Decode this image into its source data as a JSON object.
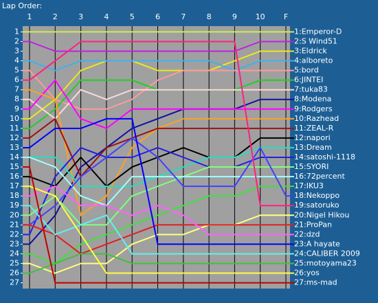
{
  "chart_data": {
    "type": "line",
    "title": "Lap Order:",
    "categories": [
      null,
      "1",
      "2",
      "3",
      "4",
      "5",
      "6",
      "7",
      "8",
      "9",
      "10",
      "F"
    ],
    "ylim": [
      27.6,
      0.4
    ],
    "yticks": [
      1,
      2,
      3,
      4,
      5,
      6,
      7,
      8,
      9,
      10,
      11,
      12,
      13,
      14,
      15,
      16,
      17,
      18,
      19,
      20,
      21,
      22,
      23,
      24,
      25,
      26,
      27
    ],
    "series": [
      {
        "name": "1:Emperor-D",
        "color": "#c8f050",
        "values": [
          1,
          1,
          1,
          1,
          1,
          1,
          1,
          1,
          1,
          1,
          1,
          1
        ]
      },
      {
        "name": "2:S Wind51",
        "color": "#c020e0",
        "values": [
          2,
          2,
          3,
          3,
          3,
          3,
          3,
          3,
          3,
          3,
          2,
          2
        ]
      },
      {
        "name": "3:Eldrick",
        "color": "#e8e820",
        "values": [
          10,
          10,
          8,
          5,
          4,
          4,
          5,
          5,
          5,
          4,
          3,
          3
        ]
      },
      {
        "name": "4:alboreto",
        "color": "#40b0f0",
        "values": [
          4,
          4,
          5,
          4,
          4,
          4,
          4,
          4,
          4,
          5,
          4,
          4
        ]
      },
      {
        "name": "5:bord",
        "color": "#ff9999",
        "values": [
          5,
          5,
          8,
          9,
          9,
          8,
          6,
          5,
          5,
          5,
          5,
          5
        ]
      },
      {
        "name": "6:JINTEI",
        "color": "#20d020",
        "values": [
          11,
          11,
          9,
          6,
          6,
          6,
          7,
          7,
          7,
          7,
          6,
          6
        ]
      },
      {
        "name": "7:tuka83",
        "color": "#ffd8d8",
        "values": [
          8,
          8,
          10,
          7,
          8,
          7,
          7,
          7,
          7,
          7,
          7,
          7
        ]
      },
      {
        "name": "8:Modena",
        "color": "#1010a0",
        "values": [
          23,
          23,
          20,
          15,
          13,
          11,
          10,
          9,
          9,
          9,
          8,
          8
        ]
      },
      {
        "name": "9:Rodgers",
        "color": "#ff00ff",
        "values": [
          9,
          9,
          6,
          10,
          11,
          9,
          9,
          9,
          9,
          9,
          9,
          9
        ]
      },
      {
        "name": "10:Razhead",
        "color": "#ffa020",
        "values": [
          7,
          7,
          8,
          20,
          18,
          13,
          11,
          10,
          10,
          10,
          10,
          10
        ]
      },
      {
        "name": "11:ZEAL-R",
        "color": "#a01010",
        "values": [
          12,
          12,
          10,
          16,
          13,
          12,
          11,
          11,
          11,
          11,
          11,
          11
        ]
      },
      {
        "name": "12:napori",
        "color": "#000000",
        "values": [
          16,
          16,
          17,
          14,
          17,
          15,
          14,
          13,
          14,
          14,
          12,
          12
        ]
      },
      {
        "name": "13:Dream",
        "color": "#20e0c0",
        "values": [
          14,
          14,
          14,
          17,
          17,
          17,
          16,
          15,
          14,
          14,
          13,
          13
        ]
      },
      {
        "name": "14:satoshi-1118",
        "color": "#2020e0",
        "values": [
          22,
          22,
          16,
          13,
          14,
          14,
          13,
          14,
          15,
          15,
          14,
          14
        ]
      },
      {
        "name": "15:SYORI",
        "color": "#80ff80",
        "values": [
          20,
          20,
          18,
          21,
          21,
          18,
          17,
          16,
          15,
          15,
          15,
          15
        ]
      },
      {
        "name": "16:72percent",
        "color": "#a0ffff",
        "values": [
          14,
          14,
          15,
          18,
          19,
          16,
          16,
          16,
          16,
          16,
          16,
          16
        ]
      },
      {
        "name": "17:IKU3",
        "color": "#40e040",
        "values": [
          24,
          24,
          25,
          23,
          22,
          21,
          20,
          19,
          18,
          18,
          17,
          17
        ]
      },
      {
        "name": "18:Nekoppo",
        "color": "#4040ff",
        "values": [
          21,
          21,
          19,
          16,
          14,
          12,
          14,
          17,
          17,
          17,
          13,
          18
        ]
      },
      {
        "name": "19:satoruko",
        "color": "#ff2080",
        "values": [
          6,
          6,
          4,
          2,
          2,
          2,
          2,
          2,
          2,
          2,
          19,
          19
        ]
      },
      {
        "name": "20:Nigel Hikou",
        "color": "#ffff80",
        "values": [
          25,
          25,
          26,
          25,
          25,
          23,
          22,
          22,
          21,
          21,
          20,
          20
        ]
      },
      {
        "name": "21:ProPan",
        "color": "#e02020",
        "values": [
          21,
          21,
          22,
          24,
          23,
          22,
          21,
          21,
          21,
          21,
          21,
          21
        ]
      },
      {
        "name": "22:dzd",
        "color": "#ff60ff",
        "values": [
          18,
          18,
          17,
          19,
          19,
          20,
          19,
          20,
          22,
          22,
          22,
          22
        ]
      },
      {
        "name": "23:A  hayate",
        "color": "#0000ff",
        "values": [
          13,
          13,
          11,
          11,
          10,
          10,
          23,
          23,
          23,
          23,
          23,
          23
        ]
      },
      {
        "name": "24:CALIBER 2009",
        "color": "#60f0f0",
        "values": [
          19,
          19,
          22,
          21,
          20,
          24,
          24,
          24,
          24,
          24,
          24,
          24
        ]
      },
      {
        "name": "25:motoyama23",
        "color": "#40c040",
        "values": [
          26,
          26,
          25,
          24,
          24,
          25,
          25,
          25,
          25,
          25,
          25,
          25
        ]
      },
      {
        "name": "26:yos",
        "color": "#ffff40",
        "values": [
          17,
          17,
          18,
          22,
          26,
          26,
          26,
          26,
          26,
          26,
          26,
          26
        ]
      },
      {
        "name": "27:ms-mad",
        "color": "#c00000",
        "values": [
          15,
          15,
          27,
          27,
          27,
          27,
          27,
          27,
          27,
          27,
          27,
          27
        ]
      }
    ]
  }
}
